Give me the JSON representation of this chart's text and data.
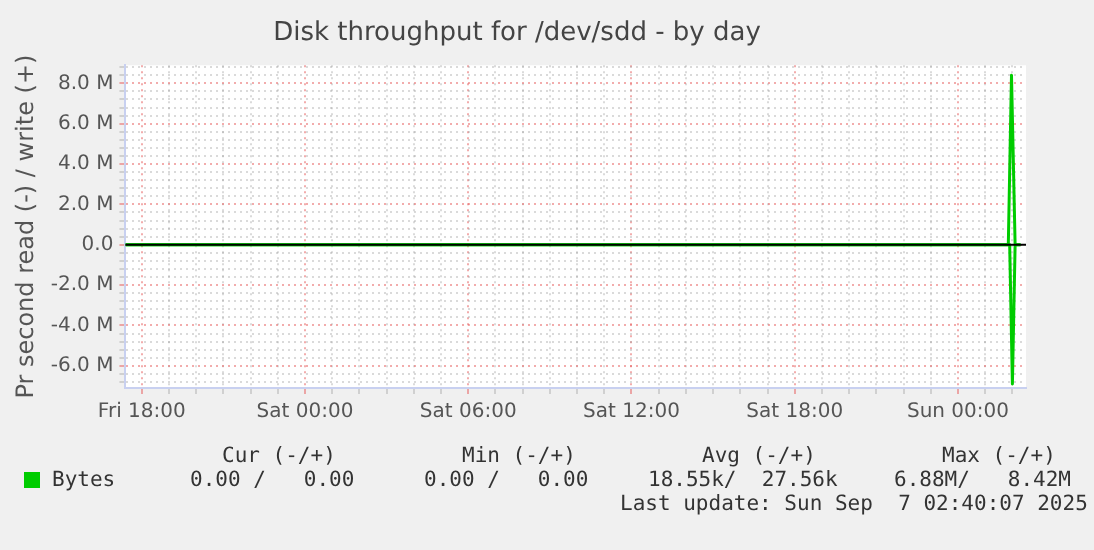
{
  "chart_data": {
    "type": "line",
    "title": "Disk throughput for /dev/sdd - by day",
    "ylabel": "Pr second read (-) / write (+)",
    "series": [
      {
        "name": "Bytes",
        "color": "#00cc00",
        "x": [
          "2025-09-05T17:24",
          "2025-09-07T01:51",
          "2025-09-07T01:58",
          "2025-09-07T02:06",
          "2025-09-07T02:18"
        ],
        "values": [
          0,
          0,
          8400000,
          0,
          0
        ]
      },
      {
        "color": "#00cc00",
        "x": [
          "2025-09-05T17:24",
          "2025-09-07T01:54",
          "2025-09-07T02:00",
          "2025-09-07T02:06",
          "2025-09-07T02:18"
        ],
        "values": [
          0,
          0,
          -6900000,
          0,
          0
        ]
      }
    ],
    "xlim": [
      "2025-09-05T17:24",
      "2025-09-07T02:30"
    ],
    "xticks": [
      {
        "value": "2025-09-05T18:00",
        "label": "Fri 18:00"
      },
      {
        "value": "2025-09-05T19:00",
        "label": null
      },
      {
        "value": "2025-09-05T20:00",
        "label": null
      },
      {
        "value": "2025-09-05T21:00",
        "label": null
      },
      {
        "value": "2025-09-05T22:00",
        "label": null
      },
      {
        "value": "2025-09-05T23:00",
        "label": null
      },
      {
        "value": "2025-09-06T00:00",
        "label": "Sat 00:00"
      },
      {
        "value": "2025-09-06T01:00",
        "label": null
      },
      {
        "value": "2025-09-06T02:00",
        "label": null
      },
      {
        "value": "2025-09-06T03:00",
        "label": null
      },
      {
        "value": "2025-09-06T04:00",
        "label": null
      },
      {
        "value": "2025-09-06T05:00",
        "label": null
      },
      {
        "value": "2025-09-06T06:00",
        "label": "Sat 06:00"
      },
      {
        "value": "2025-09-06T07:00",
        "label": null
      },
      {
        "value": "2025-09-06T08:00",
        "label": null
      },
      {
        "value": "2025-09-06T09:00",
        "label": null
      },
      {
        "value": "2025-09-06T10:00",
        "label": null
      },
      {
        "value": "2025-09-06T11:00",
        "label": null
      },
      {
        "value": "2025-09-06T12:00",
        "label": "Sat 12:00"
      },
      {
        "value": "2025-09-06T13:00",
        "label": null
      },
      {
        "value": "2025-09-06T14:00",
        "label": null
      },
      {
        "value": "2025-09-06T15:00",
        "label": null
      },
      {
        "value": "2025-09-06T16:00",
        "label": null
      },
      {
        "value": "2025-09-06T17:00",
        "label": null
      },
      {
        "value": "2025-09-06T18:00",
        "label": "Sat 18:00"
      },
      {
        "value": "2025-09-06T19:00",
        "label": null
      },
      {
        "value": "2025-09-06T20:00",
        "label": null
      },
      {
        "value": "2025-09-06T21:00",
        "label": null
      },
      {
        "value": "2025-09-06T22:00",
        "label": null
      },
      {
        "value": "2025-09-06T23:00",
        "label": null
      },
      {
        "value": "2025-09-07T00:00",
        "label": "Sun 00:00"
      },
      {
        "value": "2025-09-07T01:00",
        "label": null
      },
      {
        "value": "2025-09-07T02:00",
        "label": null
      }
    ],
    "ylim": [
      -7100000,
      8900000
    ],
    "yticks": [
      {
        "value": -6800000,
        "label": null
      },
      {
        "value": -6400000,
        "label": null
      },
      {
        "value": -6000000,
        "label": "-6.0 M"
      },
      {
        "value": -5600000,
        "label": null
      },
      {
        "value": -5200000,
        "label": null
      },
      {
        "value": -4800000,
        "label": null
      },
      {
        "value": -4400000,
        "label": null
      },
      {
        "value": -4000000,
        "label": "-4.0 M"
      },
      {
        "value": -3600000,
        "label": null
      },
      {
        "value": -3200000,
        "label": null
      },
      {
        "value": -2800000,
        "label": null
      },
      {
        "value": -2400000,
        "label": null
      },
      {
        "value": -2000000,
        "label": "-2.0 M"
      },
      {
        "value": -1600000,
        "label": null
      },
      {
        "value": -1200000,
        "label": null
      },
      {
        "value": -800000,
        "label": null
      },
      {
        "value": -400000,
        "label": null
      },
      {
        "value": 0,
        "label": "0.0"
      },
      {
        "value": 400000,
        "label": null
      },
      {
        "value": 800000,
        "label": null
      },
      {
        "value": 1200000,
        "label": null
      },
      {
        "value": 1600000,
        "label": null
      },
      {
        "value": 2000000,
        "label": "2.0 M"
      },
      {
        "value": 2400000,
        "label": null
      },
      {
        "value": 2800000,
        "label": null
      },
      {
        "value": 3200000,
        "label": null
      },
      {
        "value": 3600000,
        "label": null
      },
      {
        "value": 4000000,
        "label": "4.0 M"
      },
      {
        "value": 4400000,
        "label": null
      },
      {
        "value": 4800000,
        "label": null
      },
      {
        "value": 5200000,
        "label": null
      },
      {
        "value": 5600000,
        "label": null
      },
      {
        "value": 6000000,
        "label": "6.0 M"
      },
      {
        "value": 6400000,
        "label": null
      },
      {
        "value": 6800000,
        "label": null
      },
      {
        "value": 7200000,
        "label": null
      },
      {
        "value": 7600000,
        "label": null
      },
      {
        "value": 8000000,
        "label": "8.0 M"
      },
      {
        "value": 8400000,
        "label": null
      },
      {
        "value": 8800000,
        "label": null
      }
    ],
    "ref_lines": [
      {
        "axis": "y",
        "value": 0,
        "color": "#000000"
      }
    ],
    "grid": true,
    "legend": "bottom left",
    "marker": "none",
    "line_style": "solid",
    "annotations": [
      "Cur (-/+)",
      "Min (-/+)",
      "Avg (-/+)",
      "Max (-/+)",
      "0.00 /   0.00",
      "0.00 /   0.00",
      "18.55k/  27.56k",
      "6.88M/   8.42M",
      "Last update: Sun Sep  7 02:40:07 2025"
    ]
  }
}
